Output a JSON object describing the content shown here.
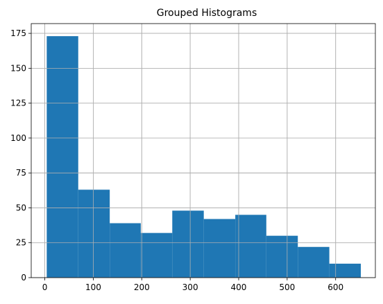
{
  "chart_data": {
    "type": "bar",
    "title": "Grouped Histograms",
    "xlabel": "",
    "ylabel": "",
    "grid": true,
    "bar_color": "#1f77b4",
    "grid_color": "#b0b0b0",
    "xlim": [
      -28,
      682
    ],
    "ylim": [
      0,
      182
    ],
    "xticks": [
      0,
      100,
      200,
      300,
      400,
      500,
      600
    ],
    "yticks": [
      0,
      25,
      50,
      75,
      100,
      125,
      150,
      175
    ],
    "bins": [
      {
        "x0": 4,
        "x1": 69,
        "value": 173
      },
      {
        "x0": 69,
        "x1": 134,
        "value": 63
      },
      {
        "x0": 134,
        "x1": 198,
        "value": 39
      },
      {
        "x0": 198,
        "x1": 263,
        "value": 32
      },
      {
        "x0": 263,
        "x1": 328,
        "value": 48
      },
      {
        "x0": 328,
        "x1": 393,
        "value": 42
      },
      {
        "x0": 393,
        "x1": 457,
        "value": 45
      },
      {
        "x0": 457,
        "x1": 522,
        "value": 30
      },
      {
        "x0": 522,
        "x1": 587,
        "value": 22
      },
      {
        "x0": 587,
        "x1": 652,
        "value": 10
      }
    ]
  }
}
